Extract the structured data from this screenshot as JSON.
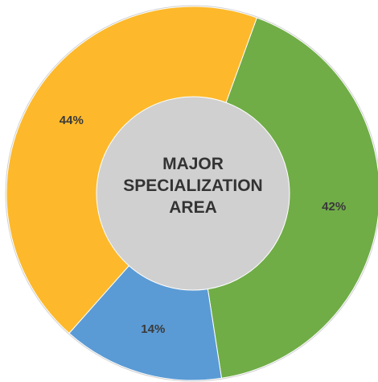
{
  "chart_data": {
    "type": "donut",
    "title": "MAJOR SPECIALIZATION AREA",
    "values": [
      42,
      14,
      44
    ],
    "value_labels": [
      "42%",
      "14%",
      "44%"
    ],
    "colors": [
      "#70ad47",
      "#5b9bd5",
      "#fdb92b"
    ]
  }
}
